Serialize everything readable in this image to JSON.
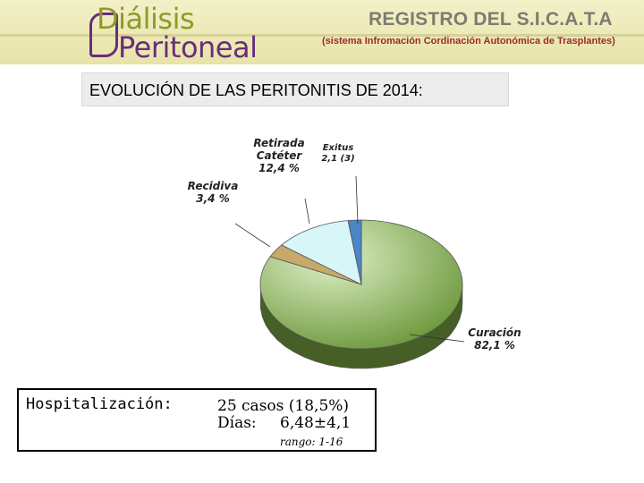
{
  "header": {
    "logo_line1": "Diálisis",
    "logo_line2": "Peritoneal",
    "registry_title": "REGISTRO DEL S.I.C.A.T.A",
    "registry_subtitle": "(sistema Infromación Cordinación Autonómica de Trasplantes)"
  },
  "chart_data": {
    "type": "pie",
    "title": "EVOLUCIÓN DE LAS PERITONITIS DE 2014:",
    "unit": "%",
    "slices": [
      {
        "label": [
          "Curación"
        ],
        "value_text": "82,1 %",
        "value": 82.1,
        "color": "#6f9a3e"
      },
      {
        "label": [
          "Recidiva"
        ],
        "value_text": "3,4 %",
        "value": 3.4,
        "color": "#c7a96a"
      },
      {
        "label": [
          "Retirada",
          "Catéter"
        ],
        "value_text": "12,4 %",
        "value": 12.4,
        "color": "#d8f6f8"
      },
      {
        "label": [
          "Exitus"
        ],
        "value_text": "2,1 (3)",
        "value": 2.1,
        "color": "#4a86c8"
      }
    ]
  },
  "info": {
    "label": "Hospitalización:",
    "cases": "25 casos (18,5%)",
    "days_label": "Días:",
    "days_value": "6,48±4,1",
    "range": "rango: 1-16"
  }
}
